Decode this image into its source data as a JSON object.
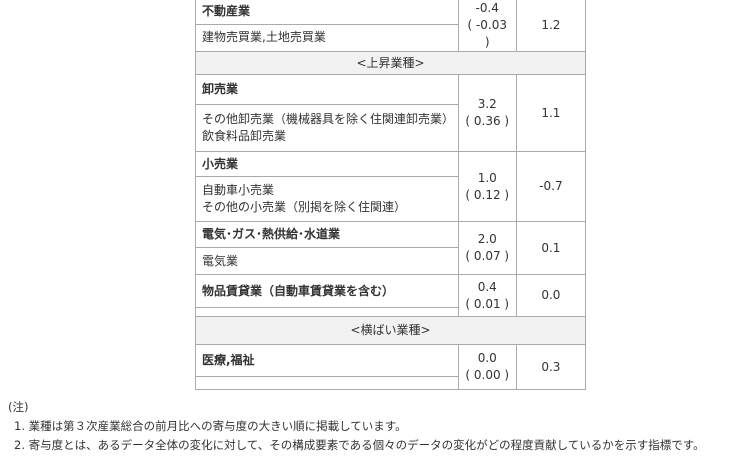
{
  "groups": [
    {
      "type": "industry",
      "name": "不動産業",
      "subs": [
        "建物売買業,土地売買業"
      ],
      "change": "-0.4",
      "contribution": "( -0.03 )",
      "index": "1.2"
    },
    {
      "type": "header",
      "label": "<上昇業種>"
    },
    {
      "type": "industry",
      "name": "卸売業",
      "subs": [
        "その他卸売業（機械器具を除く住関連卸売業）",
        "飲食料品卸売業"
      ],
      "change": "3.2",
      "contribution": "( 0.36 )",
      "index": "1.1"
    },
    {
      "type": "industry",
      "name": "小売業",
      "subs": [
        "自動車小売業",
        "その他の小売業（別掲を除く住関連）"
      ],
      "change": "1.0",
      "contribution": "( 0.12 )",
      "index": "-0.7"
    },
    {
      "type": "industry",
      "name": "電気･ガス･熱供給･水道業",
      "subs": [
        "電気業"
      ],
      "change": "2.0",
      "contribution": "( 0.07 )",
      "index": "0.1"
    },
    {
      "type": "industry",
      "name": "物品賃貸業（自動車賃貸業を含む）",
      "subs": [],
      "change": "0.4",
      "contribution": "( 0.01 )",
      "index": "0.0"
    },
    {
      "type": "header",
      "label": "<横ばい業種>"
    },
    {
      "type": "industry",
      "name": "医療,福祉",
      "subs": [],
      "change": "0.0",
      "contribution": "( 0.00 )",
      "index": "0.3"
    }
  ],
  "notes": {
    "title": "(注)",
    "items": [
      "1. 業種は第３次産業総合の前月比への寄与度の大きい順に掲載しています。",
      "2. 寄与度とは、あるデータ全体の変化に対して、その構成要素である個々のデータの変化がどの程度貢献しているかを示す指標です。"
    ]
  }
}
